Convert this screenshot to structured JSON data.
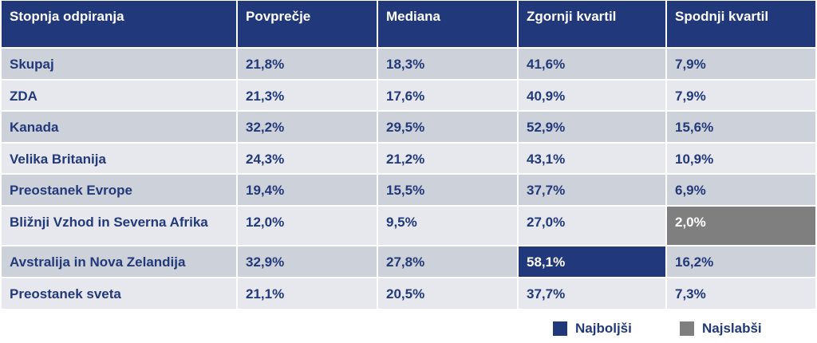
{
  "table": {
    "headers": [
      "Stopnja odpiranja",
      "Povprečje",
      "Mediana",
      "Zgornji kvartil",
      "Spodnji kvartil"
    ],
    "rows": [
      {
        "label": "Skupaj",
        "values": [
          "21,8%",
          "18,3%",
          "41,6%",
          "7,9%"
        ]
      },
      {
        "label": "ZDA",
        "values": [
          "21,3%",
          "17,6%",
          "40,9%",
          "7,9%"
        ]
      },
      {
        "label": "Kanada",
        "values": [
          "32,2%",
          "29,5%",
          "52,9%",
          "15,6%"
        ]
      },
      {
        "label": "Velika Britanija",
        "values": [
          "24,3%",
          "21,2%",
          "43,1%",
          "10,9%"
        ]
      },
      {
        "label": "Preostanek Evrope",
        "values": [
          "19,4%",
          "15,5%",
          "37,7%",
          "6,9%"
        ]
      },
      {
        "label": "Bližnji Vzhod in Severna Afrika",
        "values": [
          "12,0%",
          "9,5%",
          "27,0%",
          "2,0%"
        ]
      },
      {
        "label": "Avstralija in Nova Zelandija",
        "values": [
          "32,9%",
          "27,8%",
          "58,1%",
          "16,2%"
        ]
      },
      {
        "label": "Preostanek sveta",
        "values": [
          "21,1%",
          "20,5%",
          "37,7%",
          "7,3%"
        ]
      }
    ],
    "highlights": {
      "best": {
        "row": 6,
        "col": 3
      },
      "worst": {
        "row": 5,
        "col": 4
      }
    }
  },
  "legend": {
    "best_label": "Najboljši",
    "worst_label": "Najslabši"
  },
  "colors": {
    "header_bg": "#21397a",
    "best": "#21397a",
    "worst": "#7f7f7f",
    "row_odd": "#cdd1d9",
    "row_even": "#e6e8ed",
    "text": "#22397a"
  }
}
